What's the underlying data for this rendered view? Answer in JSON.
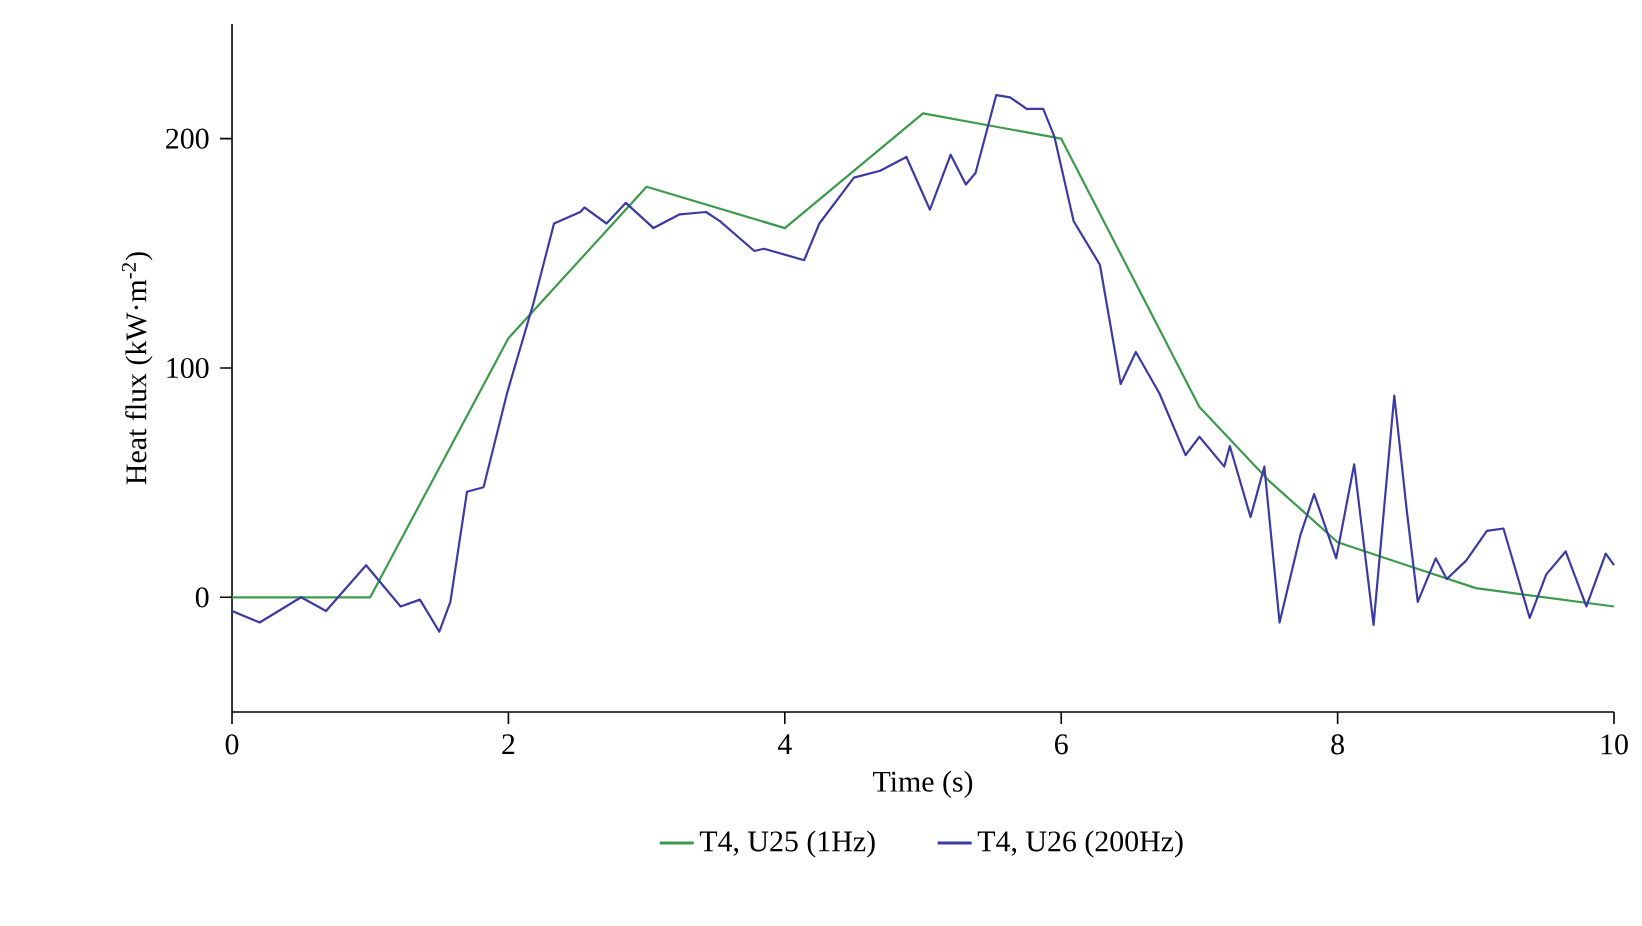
{
  "chart_data": {
    "type": "line",
    "xlabel": "Time (s)",
    "ylabel": "Heat flux (kW·m$^{-2}$)",
    "xlim": [
      0,
      10
    ],
    "ylim": [
      -50,
      250
    ],
    "xticks": [
      0,
      2,
      4,
      6,
      8,
      10
    ],
    "yticks": [
      0,
      100,
      200
    ],
    "legend": "bottom",
    "grid": false,
    "line_style": "solid",
    "marker": "none",
    "series": [
      {
        "name": "T4, U25 (1Hz)",
        "color": "#3d9a4c",
        "x": [
          0,
          1,
          2,
          3,
          4,
          5,
          6,
          7,
          7.5,
          8,
          8.5,
          9,
          10
        ],
        "values": [
          0,
          0,
          113,
          179,
          161,
          211,
          200,
          83,
          51,
          24,
          14,
          4,
          -4
        ]
      },
      {
        "name": "T4, U26 (200Hz)",
        "color": "#3b3ba3",
        "x": [
          0,
          0.2,
          0.5,
          0.68,
          0.97,
          1.22,
          1.36,
          1.5,
          1.58,
          1.7,
          1.82,
          1.99,
          2.18,
          2.33,
          2.52,
          2.55,
          2.71,
          2.85,
          3.05,
          3.24,
          3.43,
          3.53,
          3.78,
          3.85,
          4.14,
          4.25,
          4.5,
          4.69,
          4.88,
          5.05,
          5.2,
          5.31,
          5.38,
          5.53,
          5.63,
          5.75,
          5.87,
          5.95,
          6.09,
          6.18,
          6.28,
          6.43,
          6.54,
          6.71,
          6.9,
          7.0,
          7.18,
          7.22,
          7.37,
          7.47,
          7.58,
          7.73,
          7.83,
          7.99,
          8.12,
          8.26,
          8.41,
          8.5,
          8.58,
          8.71,
          8.79,
          8.93,
          9.08,
          9.2,
          9.39,
          9.51,
          9.65,
          9.8,
          9.94,
          10
        ],
        "values": [
          -6,
          -11,
          0,
          -6,
          14,
          -4,
          -1,
          -15,
          -2,
          46,
          48,
          89,
          128,
          163,
          168,
          170,
          163,
          172,
          161,
          167,
          168,
          164,
          151,
          152,
          147,
          163,
          183,
          186,
          192,
          169,
          193,
          180,
          185,
          219,
          218,
          213,
          213,
          201,
          164,
          155,
          145,
          93,
          107,
          89,
          62,
          70,
          57,
          66,
          35,
          57,
          -11,
          27,
          45,
          17,
          58,
          -12,
          88,
          38,
          -2,
          17,
          8,
          16,
          29,
          30,
          -9,
          10,
          20,
          -4,
          19,
          14
        ]
      }
    ]
  }
}
